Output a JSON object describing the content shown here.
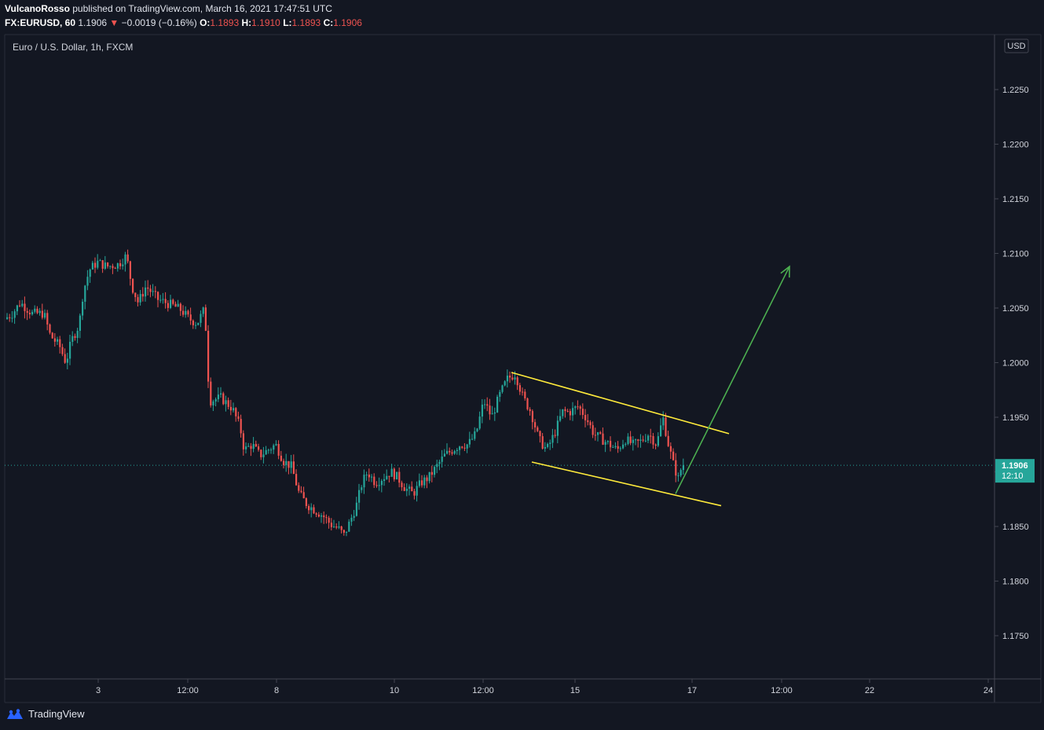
{
  "header": {
    "author": "VulcanoRosso",
    "published_text": "published on TradingView.com, March 16, 2021 17:47:51 UTC",
    "symbol": "FX:EURUSD, 60",
    "last": "1.1906",
    "change_arrow": "▼",
    "change": "−0.0019 (−0.16%)",
    "o_label": "O:",
    "o_value": "1.1893",
    "h_label": "H:",
    "h_value": "1.1910",
    "l_label": "L:",
    "l_value": "1.1893",
    "c_label": "C:",
    "c_value": "1.1906"
  },
  "chart_title": "Euro / U.S. Dollar, 1h, FXCM",
  "currency_badge": "USD",
  "price_tag": {
    "price": "1.1906",
    "countdown": "12:10"
  },
  "footer": {
    "brand": "TradingView",
    "logo_icon": "tradingview-logo-icon"
  },
  "colors": {
    "background": "#131722",
    "up": "#26a69a",
    "down": "#ef5350",
    "channel": "#ffeb3b",
    "arrow": "#4caf50",
    "axis_text": "#d1d4dc"
  },
  "chart_data": {
    "type": "candlestick",
    "title": "Euro / U.S. Dollar, 1h, FXCM",
    "xlabel": "",
    "ylabel": "",
    "ylim": [
      1.171,
      1.23
    ],
    "y_ticks": [
      "1.2250",
      "1.2200",
      "1.2150",
      "1.2100",
      "1.2050",
      "1.2000",
      "1.1950",
      "1.1900",
      "1.1850",
      "1.1800",
      "1.1750"
    ],
    "x_ticks": [
      "3",
      "12:00",
      "8",
      "10",
      "12:00",
      "15",
      "17",
      "12:00",
      "22",
      "24"
    ],
    "current_price": 1.1906,
    "path": [
      [
        0,
        1.204
      ],
      [
        10,
        1.2045
      ],
      [
        20,
        1.2055
      ],
      [
        35,
        1.2045
      ],
      [
        50,
        1.2045
      ],
      [
        58,
        1.2025
      ],
      [
        70,
        1.2015
      ],
      [
        78,
        1.2
      ],
      [
        85,
        1.202
      ],
      [
        95,
        1.2035
      ],
      [
        100,
        1.2065
      ],
      [
        108,
        1.2085
      ],
      [
        118,
        1.2092
      ],
      [
        130,
        1.2088
      ],
      [
        145,
        1.209
      ],
      [
        155,
        1.2098
      ],
      [
        162,
        1.207
      ],
      [
        170,
        1.2055
      ],
      [
        180,
        1.207
      ],
      [
        195,
        1.2058
      ],
      [
        205,
        1.2055
      ],
      [
        215,
        1.2052
      ],
      [
        225,
        1.2048
      ],
      [
        235,
        1.204
      ],
      [
        245,
        1.2036
      ],
      [
        255,
        1.205
      ],
      [
        258,
        1.1995
      ],
      [
        262,
        1.1965
      ],
      [
        275,
        1.1968
      ],
      [
        290,
        1.1958
      ],
      [
        300,
        1.194
      ],
      [
        305,
        1.192
      ],
      [
        315,
        1.1925
      ],
      [
        325,
        1.1915
      ],
      [
        335,
        1.192
      ],
      [
        345,
        1.1925
      ],
      [
        355,
        1.191
      ],
      [
        365,
        1.1905
      ],
      [
        375,
        1.188
      ],
      [
        385,
        1.187
      ],
      [
        395,
        1.1865
      ],
      [
        405,
        1.186
      ],
      [
        415,
        1.1852
      ],
      [
        425,
        1.1848
      ],
      [
        432,
        1.1842
      ],
      [
        440,
        1.1855
      ],
      [
        448,
        1.187
      ],
      [
        455,
        1.189
      ],
      [
        462,
        1.19
      ],
      [
        472,
        1.189
      ],
      [
        482,
        1.1895
      ],
      [
        492,
        1.19
      ],
      [
        500,
        1.1895
      ],
      [
        510,
        1.1885
      ],
      [
        520,
        1.188
      ],
      [
        530,
        1.189
      ],
      [
        540,
        1.1895
      ],
      [
        550,
        1.1905
      ],
      [
        560,
        1.1915
      ],
      [
        570,
        1.192
      ],
      [
        580,
        1.1925
      ],
      [
        590,
        1.1925
      ],
      [
        600,
        1.1935
      ],
      [
        610,
        1.1965
      ],
      [
        620,
        1.195
      ],
      [
        630,
        1.197
      ],
      [
        640,
        1.1985
      ],
      [
        650,
        1.199
      ],
      [
        660,
        1.1968
      ],
      [
        670,
        1.1955
      ],
      [
        680,
        1.193
      ],
      [
        690,
        1.192
      ],
      [
        700,
        1.1935
      ],
      [
        710,
        1.1955
      ],
      [
        720,
        1.1955
      ],
      [
        730,
        1.196
      ],
      [
        740,
        1.195
      ],
      [
        750,
        1.1935
      ],
      [
        760,
        1.193
      ],
      [
        770,
        1.1925
      ],
      [
        780,
        1.192
      ],
      [
        790,
        1.193
      ],
      [
        800,
        1.1925
      ],
      [
        810,
        1.1928
      ],
      [
        820,
        1.1935
      ],
      [
        830,
        1.1925
      ],
      [
        838,
        1.195
      ],
      [
        845,
        1.1925
      ],
      [
        852,
        1.1905
      ],
      [
        858,
        1.1893
      ],
      [
        862,
        1.1906
      ]
    ],
    "channel": {
      "upper": [
        [
          651,
          1.1991
        ],
        [
          928,
          1.1935
        ]
      ],
      "lower": [
        [
          677,
          1.1909
        ],
        [
          918,
          1.1869
        ]
      ]
    },
    "projection_arrow": [
      [
        860,
        1.188
      ],
      [
        1005,
        1.2088
      ]
    ]
  }
}
